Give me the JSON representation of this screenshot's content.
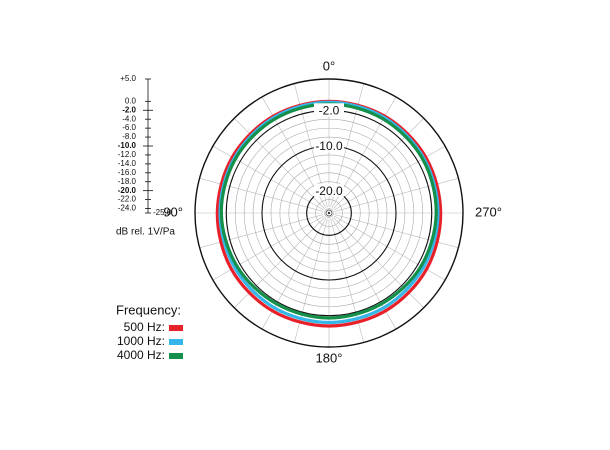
{
  "chart_data": {
    "type": "polar",
    "rlabel": "dB rel. 1V/Pa",
    "rlim": [
      -25,
      5
    ],
    "rticks": [
      {
        "value": 5,
        "label": "+5.0"
      },
      {
        "value": 0,
        "label": "0.0"
      },
      {
        "value": -2,
        "label": "-2.0",
        "major": true
      },
      {
        "value": -4,
        "label": "-4.0"
      },
      {
        "value": -6,
        "label": "-6.0"
      },
      {
        "value": -8,
        "label": "-8.0"
      },
      {
        "value": -10,
        "label": "-10.0",
        "major": true
      },
      {
        "value": -12,
        "label": "-12.0"
      },
      {
        "value": -14,
        "label": "-14.0"
      },
      {
        "value": -16,
        "label": "-16.0"
      },
      {
        "value": -18,
        "label": "-18.0"
      },
      {
        "value": -20,
        "label": "-20.0",
        "major": true
      },
      {
        "value": -22,
        "label": "-22.0"
      },
      {
        "value": -24,
        "label": "-24.0"
      },
      {
        "value": -25,
        "label": "-25.0"
      }
    ],
    "angle_ticks": [
      {
        "value": 0,
        "label": "0°"
      },
      {
        "value": 90,
        "label": "90°"
      },
      {
        "value": 180,
        "label": "180°"
      },
      {
        "value": 270,
        "label": "270°"
      }
    ],
    "angles": [
      0,
      30,
      60,
      90,
      120,
      150,
      180,
      210,
      240,
      270,
      300,
      330
    ],
    "legend_title": "Frequency:",
    "series": [
      {
        "name": "500 Hz:",
        "color": "#e8202a",
        "values": [
          0,
          0,
          0,
          0,
          0.2,
          0.3,
          0.3,
          0.3,
          0.2,
          0,
          0,
          0
        ]
      },
      {
        "name": "1000 Hz:",
        "color": "#35b6e8",
        "values": [
          -0.2,
          -0.3,
          -0.5,
          -0.6,
          -0.6,
          -0.5,
          -0.5,
          -0.5,
          -0.6,
          -0.6,
          -0.5,
          -0.3
        ]
      },
      {
        "name": "4000 Hz:",
        "color": "#14904a",
        "values": [
          -0.6,
          -0.7,
          -0.8,
          -0.9,
          -1.2,
          -1.5,
          -1.5,
          -1.5,
          -1.2,
          -1,
          -0.8,
          -0.7
        ]
      }
    ]
  }
}
